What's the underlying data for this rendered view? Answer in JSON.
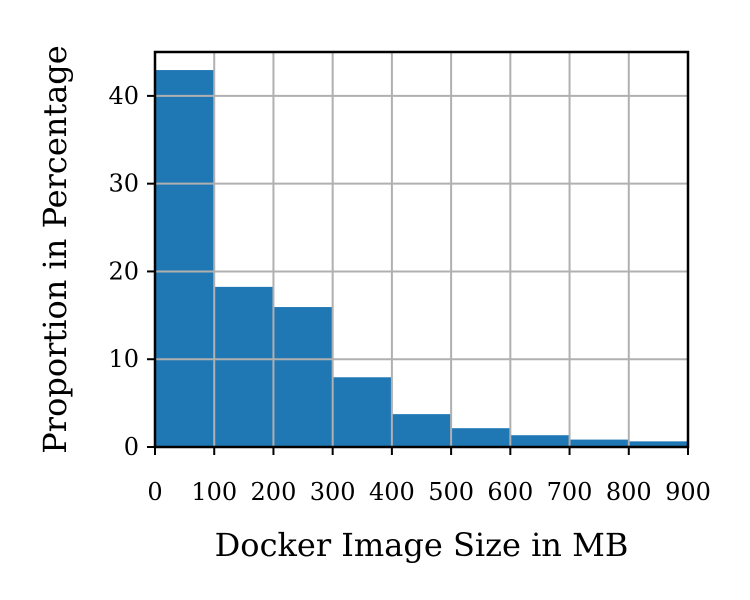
{
  "chart_data": {
    "type": "bar",
    "subtype": "histogram",
    "xlabel": "Docker Image Size in MB",
    "ylabel": "Proportion in Percentage",
    "bin_edges": [
      0,
      100,
      200,
      300,
      400,
      500,
      600,
      700,
      800,
      900
    ],
    "values": [
      43.0,
      18.3,
      16.0,
      8.0,
      3.8,
      2.2,
      1.4,
      0.9,
      0.7
    ],
    "xlim": [
      0,
      900
    ],
    "ylim": [
      0,
      45
    ],
    "xticks": [
      "0",
      "100",
      "200",
      "300",
      "400",
      "500",
      "600",
      "700",
      "800",
      "900"
    ],
    "yticks": [
      "0",
      "10",
      "20",
      "30",
      "40"
    ],
    "grid": true,
    "bar_color": "#1f77b4",
    "grid_color": "#b0b0b0"
  }
}
